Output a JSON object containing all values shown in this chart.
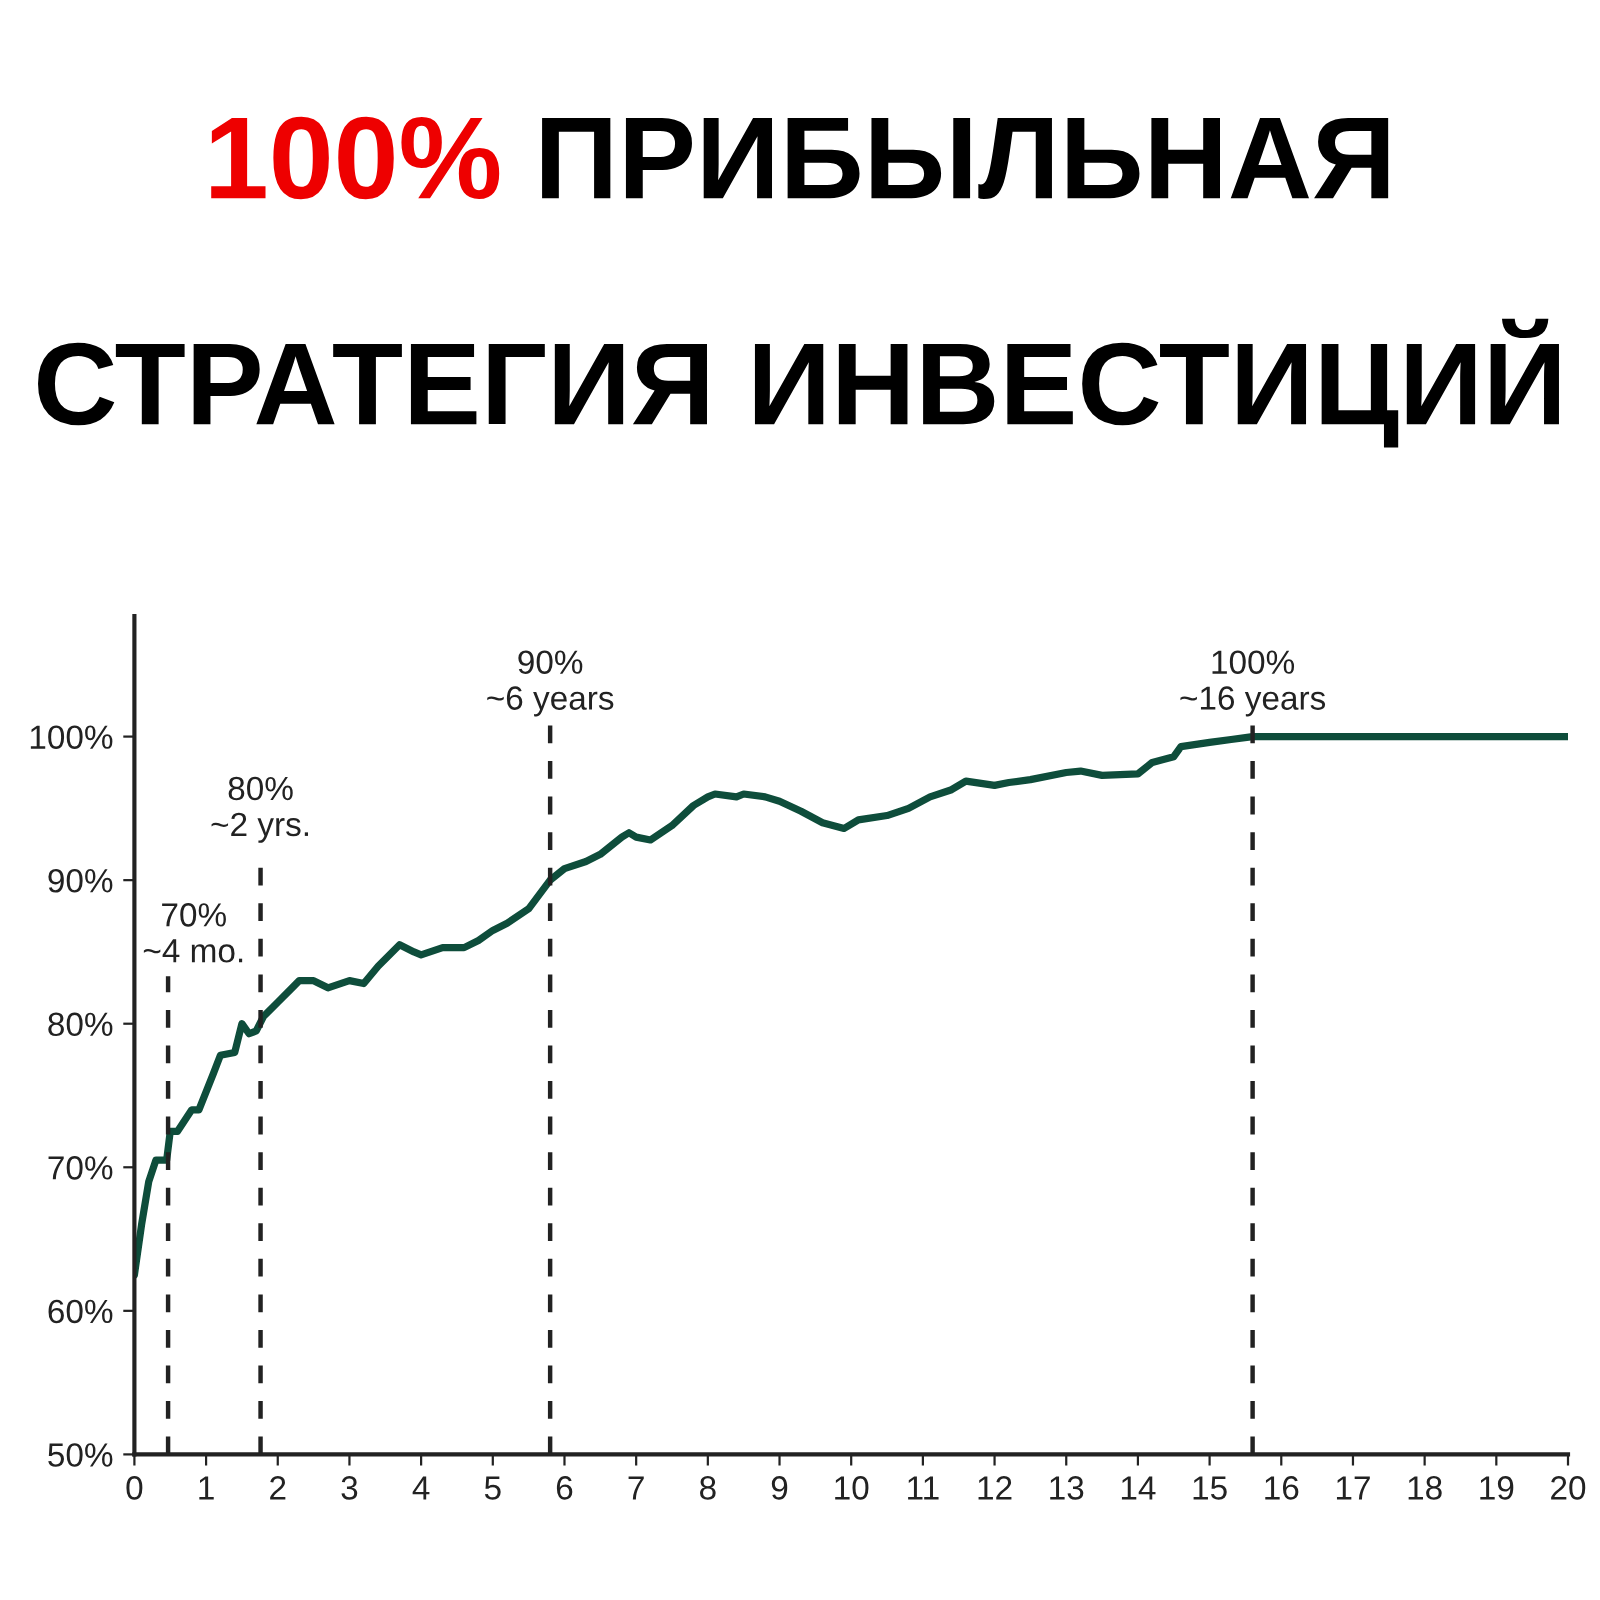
{
  "chart_data": {
    "type": "line",
    "title": "100% ПРИБЫЛЬНАЯ СТРАТЕГИЯ ИНВЕСТИЦИЙ",
    "series": [
      {
        "color": "#0e4d3b",
        "x": [
          0,
          0.1,
          0.2,
          0.3,
          0.45,
          0.5,
          0.6,
          0.8,
          0.9,
          1.1,
          1.2,
          1.4,
          1.5,
          1.6,
          1.7,
          1.8,
          2.0,
          2.2,
          2.3,
          2.5,
          2.7,
          3.0,
          3.2,
          3.4,
          3.7,
          3.9,
          4.0,
          4.3,
          4.6,
          4.8,
          5.0,
          5.2,
          5.5,
          5.8,
          6.0,
          6.3,
          6.5,
          6.8,
          6.9,
          7.0,
          7.2,
          7.5,
          7.8,
          8.0,
          8.1,
          8.4,
          8.5,
          8.8,
          9.0,
          9.3,
          9.6,
          9.9,
          10.1,
          10.5,
          10.8,
          11.1,
          11.4,
          11.6,
          12.0,
          12.2,
          12.5,
          13.0,
          13.2,
          13.5,
          14.0,
          14.2,
          14.5,
          14.6,
          15.0,
          15.3,
          15.6,
          20
        ],
        "values": [
          62.5,
          66,
          69,
          70.5,
          70.5,
          72.5,
          72.5,
          74,
          74,
          76.5,
          77.8,
          78,
          80,
          79.3,
          79.5,
          80.5,
          81.5,
          82.5,
          83,
          83,
          82.5,
          83,
          82.8,
          84,
          85.5,
          85,
          84.8,
          85.3,
          85.3,
          85.8,
          86.5,
          87,
          88,
          90,
          90.8,
          91.3,
          91.8,
          93,
          93.3,
          93,
          92.8,
          93.8,
          95.2,
          95.8,
          96,
          95.8,
          96,
          95.8,
          95.5,
          94.8,
          94,
          93.6,
          94.2,
          94.5,
          95,
          95.8,
          96.3,
          96.9,
          96.6,
          96.8,
          97,
          97.5,
          97.6,
          97.3,
          97.4,
          98.2,
          98.6,
          99.3,
          99.6,
          99.8,
          100,
          100
        ]
      }
    ],
    "xlim": [
      0,
      20
    ],
    "xticks": [
      0,
      1,
      2,
      3,
      4,
      5,
      6,
      7,
      8,
      9,
      10,
      11,
      12,
      13,
      14,
      15,
      16,
      17,
      18,
      19,
      20
    ],
    "ylim": [
      50,
      108.4
    ],
    "yticks": [
      {
        "value": 50,
        "label": "50%"
      },
      {
        "value": 60,
        "label": "60%"
      },
      {
        "value": 70,
        "label": "70%"
      },
      {
        "value": 80,
        "label": "80%"
      },
      {
        "value": 90,
        "label": "90%"
      },
      {
        "value": 100,
        "label": "100%"
      }
    ],
    "ref_lines": [
      {
        "axis": "x",
        "value": 0.47,
        "label": "70%\n~4 mo.",
        "color": "#222222",
        "line_style": "dashed"
      },
      {
        "axis": "x",
        "value": 1.76,
        "label": "80%\n~2 yrs.",
        "color": "#222222",
        "line_style": "dashed"
      },
      {
        "axis": "x",
        "value": 5.8,
        "label": "90%\n~6 years",
        "color": "#222222",
        "line_style": "dashed"
      },
      {
        "axis": "x",
        "value": 15.6,
        "label": "100%\n~16 years",
        "color": "#222222",
        "line_style": "dashed"
      }
    ],
    "grid": false
  }
}
